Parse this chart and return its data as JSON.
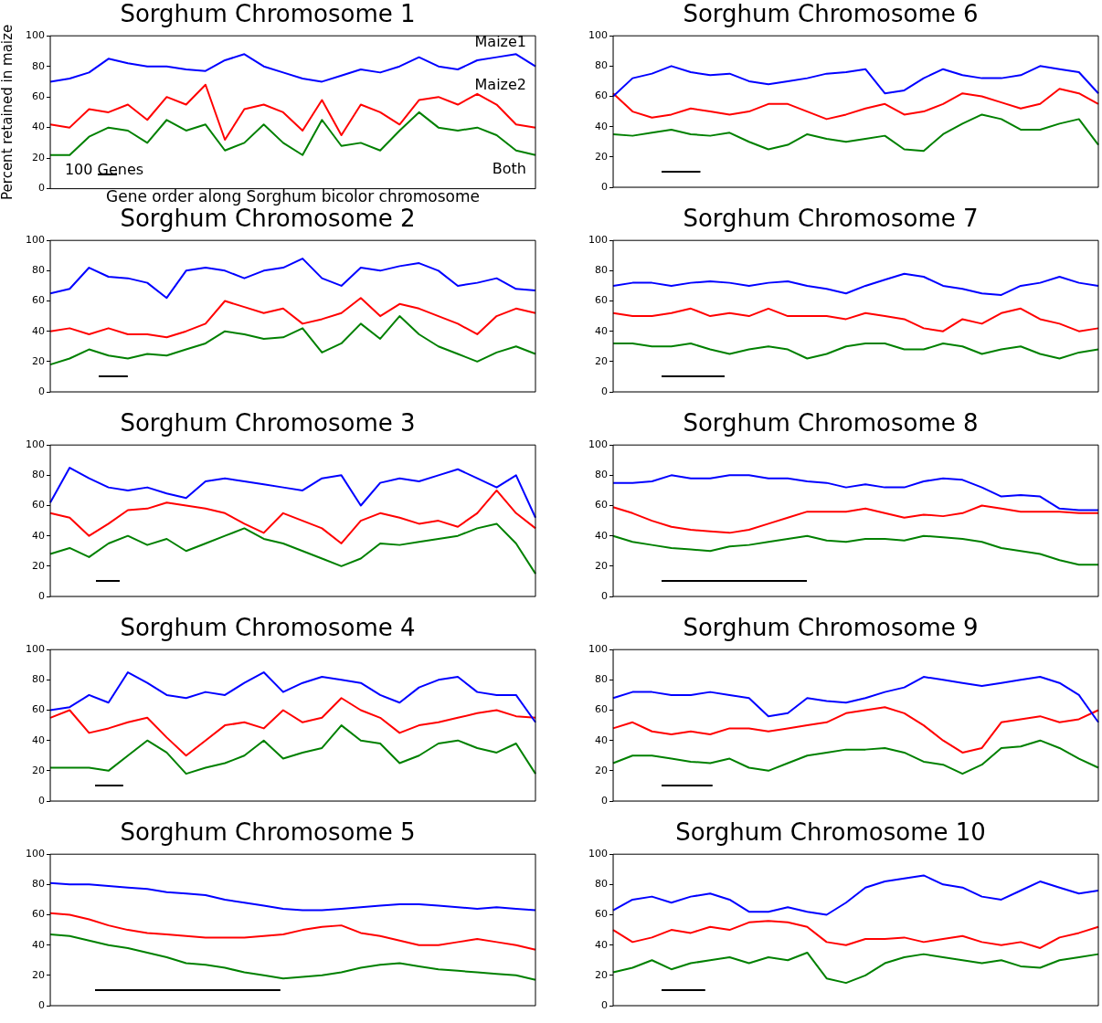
{
  "chart_data": [
    {
      "type": "line",
      "title": "Sorghum Chromosome 1",
      "xlabel": "Gene order along Sorghum bicolor chromosome",
      "ylabel": "Percent retained in maize",
      "annotations": [
        "100 Genes"
      ],
      "categories": [
        null,
        null,
        null,
        null,
        null,
        null,
        null,
        null,
        null,
        null,
        null,
        null,
        null,
        null,
        null,
        null,
        null,
        null,
        null,
        null,
        null,
        null,
        null,
        null,
        null,
        null
      ],
      "ylim": [
        0,
        100
      ],
      "yticks": [
        0,
        20,
        40,
        60,
        80,
        100
      ],
      "tick_labels": "y",
      "legend": false,
      "grid": false,
      "marker": "none",
      "series": [
        {
          "name": "Maize1",
          "color": "#0000ff",
          "values": [
            70,
            72,
            76,
            85,
            82,
            80,
            80,
            78,
            77,
            84,
            88,
            80,
            76,
            72,
            70,
            74,
            78,
            76,
            80,
            86,
            80,
            78,
            84,
            86,
            88,
            80
          ]
        },
        {
          "name": "Maize2",
          "color": "#ff0000",
          "values": [
            42,
            40,
            52,
            50,
            55,
            45,
            60,
            55,
            68,
            32,
            52,
            55,
            50,
            38,
            58,
            35,
            55,
            50,
            42,
            58,
            60,
            55,
            62,
            55,
            42,
            40
          ]
        },
        {
          "name": "Both",
          "color": "#008000",
          "values": [
            22,
            22,
            34,
            40,
            38,
            30,
            45,
            38,
            42,
            25,
            30,
            42,
            30,
            22,
            45,
            28,
            30,
            25,
            38,
            50,
            40,
            38,
            40,
            35,
            25,
            22
          ]
        }
      ]
    },
    {
      "type": "line",
      "title": "Sorghum Chromosome 6",
      "categories": [
        null,
        null,
        null,
        null,
        null,
        null,
        null,
        null,
        null,
        null,
        null,
        null,
        null,
        null,
        null,
        null,
        null,
        null,
        null,
        null,
        null,
        null,
        null,
        null,
        null,
        null
      ],
      "ylim": [
        0,
        100
      ],
      "yticks": [
        0,
        20,
        40,
        60,
        80,
        100
      ],
      "tick_labels": "y",
      "legend": false,
      "grid": false,
      "marker": "none",
      "series": [
        {
          "color": "#0000ff",
          "values": [
            60,
            72,
            75,
            80,
            76,
            74,
            75,
            70,
            68,
            70,
            72,
            75,
            76,
            78,
            62,
            64,
            72,
            78,
            74,
            72,
            72,
            74,
            80,
            78,
            76,
            62
          ]
        },
        {
          "color": "#ff0000",
          "values": [
            62,
            50,
            46,
            48,
            52,
            50,
            48,
            50,
            55,
            55,
            50,
            45,
            48,
            52,
            55,
            48,
            50,
            55,
            62,
            60,
            56,
            52,
            55,
            65,
            62,
            55
          ]
        },
        {
          "color": "#008000",
          "values": [
            35,
            34,
            36,
            38,
            35,
            34,
            36,
            30,
            25,
            28,
            35,
            32,
            30,
            32,
            34,
            25,
            24,
            35,
            42,
            48,
            45,
            38,
            38,
            42,
            45,
            28
          ]
        }
      ]
    },
    {
      "type": "line",
      "title": "Sorghum Chromosome 2",
      "categories": [
        null,
        null,
        null,
        null,
        null,
        null,
        null,
        null,
        null,
        null,
        null,
        null,
        null,
        null,
        null,
        null,
        null,
        null,
        null,
        null,
        null,
        null,
        null,
        null,
        null,
        null
      ],
      "ylim": [
        0,
        100
      ],
      "yticks": [
        0,
        20,
        40,
        60,
        80,
        100
      ],
      "tick_labels": "y",
      "legend": false,
      "grid": false,
      "marker": "none",
      "series": [
        {
          "color": "#0000ff",
          "values": [
            65,
            68,
            82,
            76,
            75,
            72,
            62,
            80,
            82,
            80,
            75,
            80,
            82,
            88,
            75,
            70,
            82,
            80,
            83,
            85,
            80,
            70,
            72,
            75,
            68,
            67
          ]
        },
        {
          "color": "#ff0000",
          "values": [
            40,
            42,
            38,
            42,
            38,
            38,
            36,
            40,
            45,
            60,
            56,
            52,
            55,
            45,
            48,
            52,
            62,
            50,
            58,
            55,
            50,
            45,
            38,
            50,
            55,
            52
          ]
        },
        {
          "color": "#008000",
          "values": [
            18,
            22,
            28,
            24,
            22,
            25,
            24,
            28,
            32,
            40,
            38,
            35,
            36,
            42,
            26,
            32,
            45,
            35,
            50,
            38,
            30,
            25,
            20,
            26,
            30,
            25
          ]
        }
      ]
    },
    {
      "type": "line",
      "title": "Sorghum Chromosome 7",
      "categories": [
        null,
        null,
        null,
        null,
        null,
        null,
        null,
        null,
        null,
        null,
        null,
        null,
        null,
        null,
        null,
        null,
        null,
        null,
        null,
        null,
        null,
        null,
        null,
        null,
        null,
        null
      ],
      "ylim": [
        0,
        100
      ],
      "yticks": [
        0,
        20,
        40,
        60,
        80,
        100
      ],
      "tick_labels": "y",
      "legend": false,
      "grid": false,
      "marker": "none",
      "series": [
        {
          "color": "#0000ff",
          "values": [
            70,
            72,
            72,
            70,
            72,
            73,
            72,
            70,
            72,
            73,
            70,
            68,
            65,
            70,
            74,
            78,
            76,
            70,
            68,
            65,
            64,
            70,
            72,
            76,
            72,
            70
          ]
        },
        {
          "color": "#ff0000",
          "values": [
            52,
            50,
            50,
            52,
            55,
            50,
            52,
            50,
            55,
            50,
            50,
            50,
            48,
            52,
            50,
            48,
            42,
            40,
            48,
            45,
            52,
            55,
            48,
            45,
            40,
            42
          ]
        },
        {
          "color": "#008000",
          "values": [
            32,
            32,
            30,
            30,
            32,
            28,
            25,
            28,
            30,
            28,
            22,
            25,
            30,
            32,
            32,
            28,
            28,
            32,
            30,
            25,
            28,
            30,
            25,
            22,
            26,
            28
          ]
        }
      ]
    },
    {
      "type": "line",
      "title": "Sorghum Chromosome 3",
      "categories": [
        null,
        null,
        null,
        null,
        null,
        null,
        null,
        null,
        null,
        null,
        null,
        null,
        null,
        null,
        null,
        null,
        null,
        null,
        null,
        null,
        null,
        null,
        null,
        null,
        null,
        null
      ],
      "ylim": [
        0,
        100
      ],
      "yticks": [
        0,
        20,
        40,
        60,
        80,
        100
      ],
      "tick_labels": "y",
      "legend": false,
      "grid": false,
      "marker": "none",
      "series": [
        {
          "color": "#0000ff",
          "values": [
            62,
            85,
            78,
            72,
            70,
            72,
            68,
            65,
            76,
            78,
            76,
            74,
            72,
            70,
            78,
            80,
            60,
            75,
            78,
            76,
            80,
            84,
            78,
            72,
            80,
            52
          ]
        },
        {
          "color": "#ff0000",
          "values": [
            55,
            52,
            40,
            48,
            57,
            58,
            62,
            60,
            58,
            55,
            48,
            42,
            55,
            50,
            45,
            35,
            50,
            55,
            52,
            48,
            50,
            46,
            55,
            70,
            55,
            45
          ]
        },
        {
          "color": "#008000",
          "values": [
            28,
            32,
            26,
            35,
            40,
            34,
            38,
            30,
            35,
            40,
            45,
            38,
            35,
            30,
            25,
            20,
            25,
            35,
            34,
            36,
            38,
            40,
            45,
            48,
            35,
            15
          ]
        }
      ]
    },
    {
      "type": "line",
      "title": "Sorghum Chromosome 8",
      "categories": [
        null,
        null,
        null,
        null,
        null,
        null,
        null,
        null,
        null,
        null,
        null,
        null,
        null,
        null,
        null,
        null,
        null,
        null,
        null,
        null,
        null,
        null,
        null,
        null,
        null,
        null
      ],
      "ylim": [
        0,
        100
      ],
      "yticks": [
        0,
        20,
        40,
        60,
        80,
        100
      ],
      "tick_labels": "y",
      "legend": false,
      "grid": false,
      "marker": "none",
      "series": [
        {
          "color": "#0000ff",
          "values": [
            75,
            75,
            76,
            80,
            78,
            78,
            80,
            80,
            78,
            78,
            76,
            75,
            72,
            74,
            72,
            72,
            76,
            78,
            77,
            72,
            66,
            67,
            66,
            58,
            57,
            57
          ]
        },
        {
          "color": "#ff0000",
          "values": [
            59,
            55,
            50,
            46,
            44,
            43,
            42,
            44,
            48,
            52,
            56,
            56,
            56,
            58,
            55,
            52,
            54,
            53,
            55,
            60,
            58,
            56,
            56,
            56,
            55,
            55
          ]
        },
        {
          "color": "#008000",
          "values": [
            40,
            36,
            34,
            32,
            31,
            30,
            33,
            34,
            36,
            38,
            40,
            37,
            36,
            38,
            38,
            37,
            40,
            39,
            38,
            36,
            32,
            30,
            28,
            24,
            21,
            21
          ]
        }
      ]
    },
    {
      "type": "line",
      "title": "Sorghum Chromosome 4",
      "categories": [
        null,
        null,
        null,
        null,
        null,
        null,
        null,
        null,
        null,
        null,
        null,
        null,
        null,
        null,
        null,
        null,
        null,
        null,
        null,
        null,
        null,
        null,
        null,
        null,
        null,
        null
      ],
      "ylim": [
        0,
        100
      ],
      "yticks": [
        0,
        20,
        40,
        60,
        80,
        100
      ],
      "tick_labels": "y",
      "legend": false,
      "grid": false,
      "marker": "none",
      "series": [
        {
          "color": "#0000ff",
          "values": [
            60,
            62,
            70,
            65,
            85,
            78,
            70,
            68,
            72,
            70,
            78,
            85,
            72,
            78,
            82,
            80,
            78,
            70,
            65,
            75,
            80,
            82,
            72,
            70,
            70,
            52
          ]
        },
        {
          "color": "#ff0000",
          "values": [
            55,
            60,
            45,
            48,
            52,
            55,
            42,
            30,
            40,
            50,
            52,
            48,
            60,
            52,
            55,
            68,
            60,
            55,
            45,
            50,
            52,
            55,
            58,
            60,
            56,
            55
          ]
        },
        {
          "color": "#008000",
          "values": [
            22,
            22,
            22,
            20,
            30,
            40,
            32,
            18,
            22,
            25,
            30,
            40,
            28,
            32,
            35,
            50,
            40,
            38,
            25,
            30,
            38,
            40,
            35,
            32,
            38,
            18
          ]
        }
      ]
    },
    {
      "type": "line",
      "title": "Sorghum Chromosome 9",
      "categories": [
        null,
        null,
        null,
        null,
        null,
        null,
        null,
        null,
        null,
        null,
        null,
        null,
        null,
        null,
        null,
        null,
        null,
        null,
        null,
        null,
        null,
        null,
        null,
        null,
        null,
        null
      ],
      "ylim": [
        0,
        100
      ],
      "yticks": [
        0,
        20,
        40,
        60,
        80,
        100
      ],
      "tick_labels": "y",
      "legend": false,
      "grid": false,
      "marker": "none",
      "series": [
        {
          "color": "#0000ff",
          "values": [
            68,
            72,
            72,
            70,
            70,
            72,
            70,
            68,
            56,
            58,
            68,
            66,
            65,
            68,
            72,
            75,
            82,
            80,
            78,
            76,
            78,
            80,
            82,
            78,
            70,
            52
          ]
        },
        {
          "color": "#ff0000",
          "values": [
            48,
            52,
            46,
            44,
            46,
            44,
            48,
            48,
            46,
            48,
            50,
            52,
            58,
            60,
            62,
            58,
            50,
            40,
            32,
            35,
            52,
            54,
            56,
            52,
            54,
            60
          ]
        },
        {
          "color": "#008000",
          "values": [
            25,
            30,
            30,
            28,
            26,
            25,
            28,
            22,
            20,
            25,
            30,
            32,
            34,
            34,
            35,
            32,
            26,
            24,
            18,
            24,
            35,
            36,
            40,
            35,
            28,
            22
          ]
        }
      ]
    },
    {
      "type": "line",
      "title": "Sorghum Chromosome 5",
      "categories": [
        null,
        null,
        null,
        null,
        null,
        null,
        null,
        null,
        null,
        null,
        null,
        null,
        null,
        null,
        null,
        null,
        null,
        null,
        null,
        null,
        null,
        null,
        null,
        null,
        null,
        null
      ],
      "ylim": [
        0,
        100
      ],
      "yticks": [
        0,
        20,
        40,
        60,
        80,
        100
      ],
      "tick_labels": "y",
      "legend": false,
      "grid": false,
      "marker": "none",
      "series": [
        {
          "color": "#0000ff",
          "values": [
            81,
            80,
            80,
            79,
            78,
            77,
            75,
            74,
            73,
            70,
            68,
            66,
            64,
            63,
            63,
            64,
            65,
            66,
            67,
            67,
            66,
            65,
            64,
            65,
            64,
            63
          ]
        },
        {
          "color": "#ff0000",
          "values": [
            61,
            60,
            57,
            53,
            50,
            48,
            47,
            46,
            45,
            45,
            45,
            46,
            47,
            50,
            52,
            53,
            48,
            46,
            43,
            40,
            40,
            42,
            44,
            42,
            40,
            37
          ]
        },
        {
          "color": "#008000",
          "values": [
            47,
            46,
            43,
            40,
            38,
            35,
            32,
            28,
            27,
            25,
            22,
            20,
            18,
            19,
            20,
            22,
            25,
            27,
            28,
            26,
            24,
            23,
            22,
            21,
            20,
            17
          ]
        }
      ]
    },
    {
      "type": "line",
      "title": "Sorghum Chromosome 10",
      "categories": [
        null,
        null,
        null,
        null,
        null,
        null,
        null,
        null,
        null,
        null,
        null,
        null,
        null,
        null,
        null,
        null,
        null,
        null,
        null,
        null,
        null,
        null,
        null,
        null,
        null,
        null
      ],
      "ylim": [
        0,
        100
      ],
      "yticks": [
        0,
        20,
        40,
        60,
        80,
        100
      ],
      "tick_labels": "y",
      "legend": false,
      "grid": false,
      "marker": "none",
      "series": [
        {
          "color": "#0000ff",
          "values": [
            63,
            70,
            72,
            68,
            72,
            74,
            70,
            62,
            62,
            65,
            62,
            60,
            68,
            78,
            82,
            84,
            86,
            80,
            78,
            72,
            70,
            76,
            82,
            78,
            74,
            76
          ]
        },
        {
          "color": "#ff0000",
          "values": [
            50,
            42,
            45,
            50,
            48,
            52,
            50,
            55,
            56,
            55,
            52,
            42,
            40,
            44,
            44,
            45,
            42,
            44,
            46,
            42,
            40,
            42,
            38,
            45,
            48,
            52
          ]
        },
        {
          "color": "#008000",
          "values": [
            22,
            25,
            30,
            24,
            28,
            30,
            32,
            28,
            32,
            30,
            35,
            18,
            15,
            20,
            28,
            32,
            34,
            32,
            30,
            28,
            30,
            26,
            25,
            30,
            32,
            34
          ]
        }
      ]
    }
  ]
}
